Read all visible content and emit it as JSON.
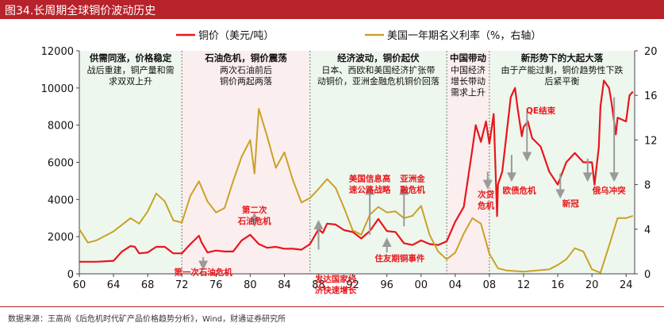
{
  "header": {
    "title": "图34.长周期全球铜价波动历史"
  },
  "footer": {
    "source": "数据来源：王高尚《后危机时代矿产品价格趋势分析》，Wind，财通证券研究所"
  },
  "colors": {
    "copper": "#e8161b",
    "rate": "#c9a227",
    "title_bar": "#b8222a",
    "shade_green": "#eef7ee",
    "shade_pink": "#fbeeee",
    "annotation": "#e8161b"
  },
  "chart_data": {
    "type": "line",
    "legend": {
      "position": "top",
      "copper": "铜价（美元/吨）",
      "rate": "美国一年期名义利率（%，右轴）"
    },
    "x_axis": {
      "range": [
        1960,
        2025
      ],
      "tick_values": [
        1960,
        1964,
        1968,
        1972,
        1976,
        1980,
        1984,
        1988,
        1992,
        1996,
        2000,
        2004,
        2008,
        2012,
        2016,
        2020,
        2024
      ],
      "tick_labels": [
        "60",
        "64",
        "68",
        "72",
        "76",
        "80",
        "84",
        "88",
        "92",
        "96",
        "00",
        "04",
        "08",
        "12",
        "16",
        "20",
        "24"
      ]
    },
    "y_left": {
      "range": [
        0,
        12000
      ],
      "ticks": [
        0,
        2000,
        4000,
        6000,
        8000,
        10000,
        12000
      ]
    },
    "y_right": {
      "range": [
        0,
        20
      ],
      "ticks": [
        0,
        4,
        8,
        12,
        16,
        20
      ]
    },
    "periods": [
      {
        "start": 1960,
        "end": 1972,
        "shade": "green",
        "title": "供需同涨，价格稳定",
        "desc": [
          "战后重建，铜产量和需",
          "求双双上升"
        ]
      },
      {
        "start": 1972,
        "end": 1987,
        "shade": "pink",
        "title": "石油危机，铜价震荡",
        "desc": [
          "两次石油前后",
          "铜价两起两落"
        ]
      },
      {
        "start": 1987,
        "end": 2003,
        "shade": "green",
        "title": "经济波动，铜价起伏",
        "desc": [
          "日本、西欧和美国经济扩张带",
          "动铜价，亚洲金融危机铜价回落"
        ]
      },
      {
        "start": 2003,
        "end": 2008,
        "shade": "pink",
        "title": "中国带动",
        "desc": [
          "中国经济",
          "增长带动",
          "需求上升"
        ]
      },
      {
        "start": 2008,
        "end": 2025,
        "shade": "green",
        "title": "新形势下的大起大落",
        "desc": [
          "由于产能过剩，铜价趋势性下跌",
          "后紧平衡"
        ]
      }
    ],
    "annotations": [
      {
        "lines": [
          "第一次石油危机"
        ],
        "x": 1974.5,
        "y": 100
      },
      {
        "lines": [
          "第二次",
          "石油危机"
        ],
        "x": 1980.5,
        "y": 3450
      },
      {
        "lines": [
          "发达国家经",
          "济快速增长"
        ],
        "x": 1990,
        "y": -250
      },
      {
        "lines": [
          "美国信息高",
          "速公路战略"
        ],
        "x": 1994,
        "y": 5150
      },
      {
        "lines": [
          "住友期铜事件"
        ],
        "x": 1997.5,
        "y": 850
      },
      {
        "lines": [
          "亚洲金",
          "融危机"
        ],
        "x": 1999,
        "y": 5150
      },
      {
        "lines": [
          "次贷",
          "危机"
        ],
        "x": 2007.6,
        "y": 4300
      },
      {
        "lines": [
          "QE结束"
        ],
        "x": 2014,
        "y": 8800
      },
      {
        "lines": [
          "欧债危机"
        ],
        "x": 2011.5,
        "y": 4500
      },
      {
        "lines": [
          "新冠"
        ],
        "x": 2017.5,
        "y": 3800
      },
      {
        "lines": [
          "俄乌冲突"
        ],
        "x": 2022,
        "y": 4500
      }
    ],
    "arrows": [
      {
        "x": 1974.5,
        "y_from": 900,
        "y_to": 450
      },
      {
        "x": 1980.5,
        "y_from": 2550,
        "y_to": 3050
      },
      {
        "x": 1988,
        "y_from": 1300,
        "y_to": 2650
      },
      {
        "x": 1994,
        "y_from": 2100,
        "y_to": 4500
      },
      {
        "x": 1996,
        "y_from": 1150,
        "y_to": 1700
      },
      {
        "x": 1998,
        "y_from": 2550,
        "y_to": 4500
      },
      {
        "x": 2007.8,
        "y_from": 5500,
        "y_to": 4800
      },
      {
        "x": 2012.4,
        "y_from": 8700,
        "y_to": 6300
      },
      {
        "x": 2010.6,
        "y_from": 6400,
        "y_to": 5200
      },
      {
        "x": 2016.3,
        "y_from": 5400,
        "y_to": 4300
      },
      {
        "x": 2019.5,
        "y_from": 6200,
        "y_to": 5200
      },
      {
        "x": 2022.6,
        "y_from": 9500,
        "y_to": 5200
      }
    ],
    "series": [
      {
        "name": "铜价（美元/吨）",
        "axis": "left",
        "x": [
          1960,
          1962,
          1964,
          1965,
          1966,
          1966.5,
          1967,
          1968,
          1969,
          1970,
          1971,
          1972,
          1973,
          1974,
          1974.3,
          1975,
          1976,
          1977,
          1978,
          1979,
          1980,
          1981,
          1982,
          1983,
          1984,
          1985,
          1986,
          1987,
          1988,
          1988.5,
          1989,
          1990,
          1991,
          1992,
          1993,
          1994,
          1995,
          1996,
          1997,
          1998,
          1999,
          2000,
          2001,
          2002,
          2003,
          2004,
          2005,
          2006,
          2006.4,
          2007,
          2007.6,
          2008,
          2008.5,
          2008.9,
          2009,
          2009.5,
          2010,
          2010.5,
          2011,
          2011.3,
          2011.8,
          2012,
          2012.5,
          2013,
          2014,
          2015,
          2016,
          2017,
          2018,
          2019,
          2020,
          2020.3,
          2020.8,
          2021,
          2021.4,
          2022,
          2022.3,
          2022.8,
          2023,
          2023.5,
          2024,
          2024.4,
          2024.8
        ],
        "values": [
          650,
          650,
          700,
          1200,
          1500,
          1450,
          1100,
          1150,
          1450,
          1450,
          1100,
          1100,
          1600,
          2050,
          1700,
          1150,
          1250,
          1200,
          1200,
          1800,
          2100,
          1600,
          1400,
          1450,
          1350,
          1350,
          1300,
          1600,
          2400,
          2200,
          2700,
          2650,
          2350,
          2250,
          1900,
          2300,
          2950,
          2300,
          2250,
          1650,
          1550,
          1800,
          1600,
          1550,
          1750,
          2800,
          3600,
          6700,
          8000,
          7100,
          8200,
          7000,
          8600,
          3100,
          4800,
          5500,
          7500,
          9500,
          10000,
          8900,
          7400,
          7900,
          8200,
          7300,
          6850,
          5500,
          4800,
          6000,
          6500,
          6000,
          6000,
          4800,
          6800,
          9000,
          10400,
          10000,
          9200,
          7500,
          8400,
          8300,
          8200,
          9600,
          9800
        ]
      },
      {
        "name": "美国一年期名义利率（%，右轴）",
        "axis": "right",
        "x": [
          1960,
          1961,
          1962,
          1964,
          1966,
          1967,
          1968,
          1969,
          1970,
          1971,
          1972,
          1973,
          1974,
          1975,
          1976,
          1977,
          1978,
          1979,
          1980,
          1980.5,
          1981,
          1982,
          1983,
          1984,
          1985,
          1986,
          1987,
          1988,
          1989,
          1990,
          1991,
          1992,
          1993,
          1994,
          1995,
          1996,
          1997,
          1998,
          1999,
          2000,
          2001,
          2002,
          2003,
          2004,
          2005,
          2006,
          2007,
          2008,
          2009,
          2010,
          2012,
          2015,
          2016,
          2017,
          2018,
          2019,
          2020,
          2021,
          2022,
          2023,
          2024,
          2024.8
        ],
        "values": [
          4.0,
          2.8,
          3.0,
          3.8,
          5.0,
          4.5,
          5.6,
          7.2,
          6.5,
          4.8,
          4.6,
          7.0,
          8.3,
          6.5,
          5.5,
          5.9,
          8.3,
          10.5,
          12.0,
          9.0,
          14.8,
          12.3,
          9.5,
          10.9,
          8.4,
          6.4,
          6.8,
          7.6,
          8.5,
          7.7,
          5.9,
          3.9,
          3.5,
          5.3,
          6.0,
          5.5,
          5.6,
          5.0,
          5.2,
          6.1,
          3.5,
          2.0,
          1.3,
          1.9,
          3.6,
          5.0,
          4.5,
          1.8,
          0.5,
          0.3,
          0.2,
          0.4,
          0.8,
          1.3,
          2.3,
          2.0,
          0.4,
          0.1,
          2.5,
          5.0,
          5.0,
          5.2
        ]
      }
    ]
  }
}
